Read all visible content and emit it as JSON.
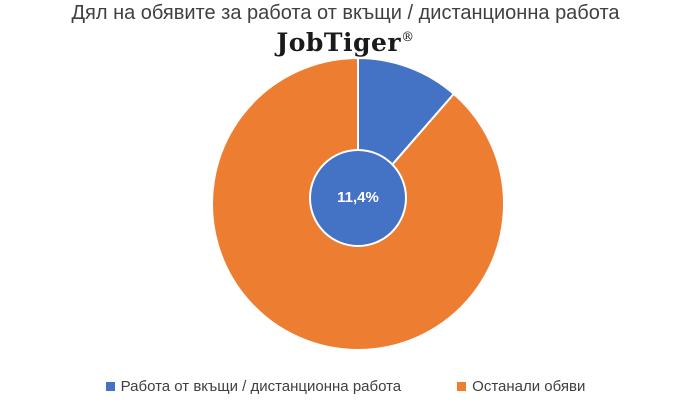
{
  "title": "Дял на обявите за работа от вкъщи / дистанционна работа",
  "logo": {
    "text": "JobTiger",
    "mark": "®"
  },
  "colors": {
    "remote": "#4472C4",
    "other": "#ED7D31",
    "border": "#ffffff"
  },
  "chart_data": {
    "type": "pie",
    "labels": [
      "Работа от вкъщи / дистанционна работа",
      "Останали обяви"
    ],
    "values": [
      11.4,
      88.6
    ],
    "data_labels": [
      "11,4%",
      ""
    ],
    "title": "Дял на обявите за работа от вкъщи / дистанционна работа",
    "legend": "bottom"
  }
}
